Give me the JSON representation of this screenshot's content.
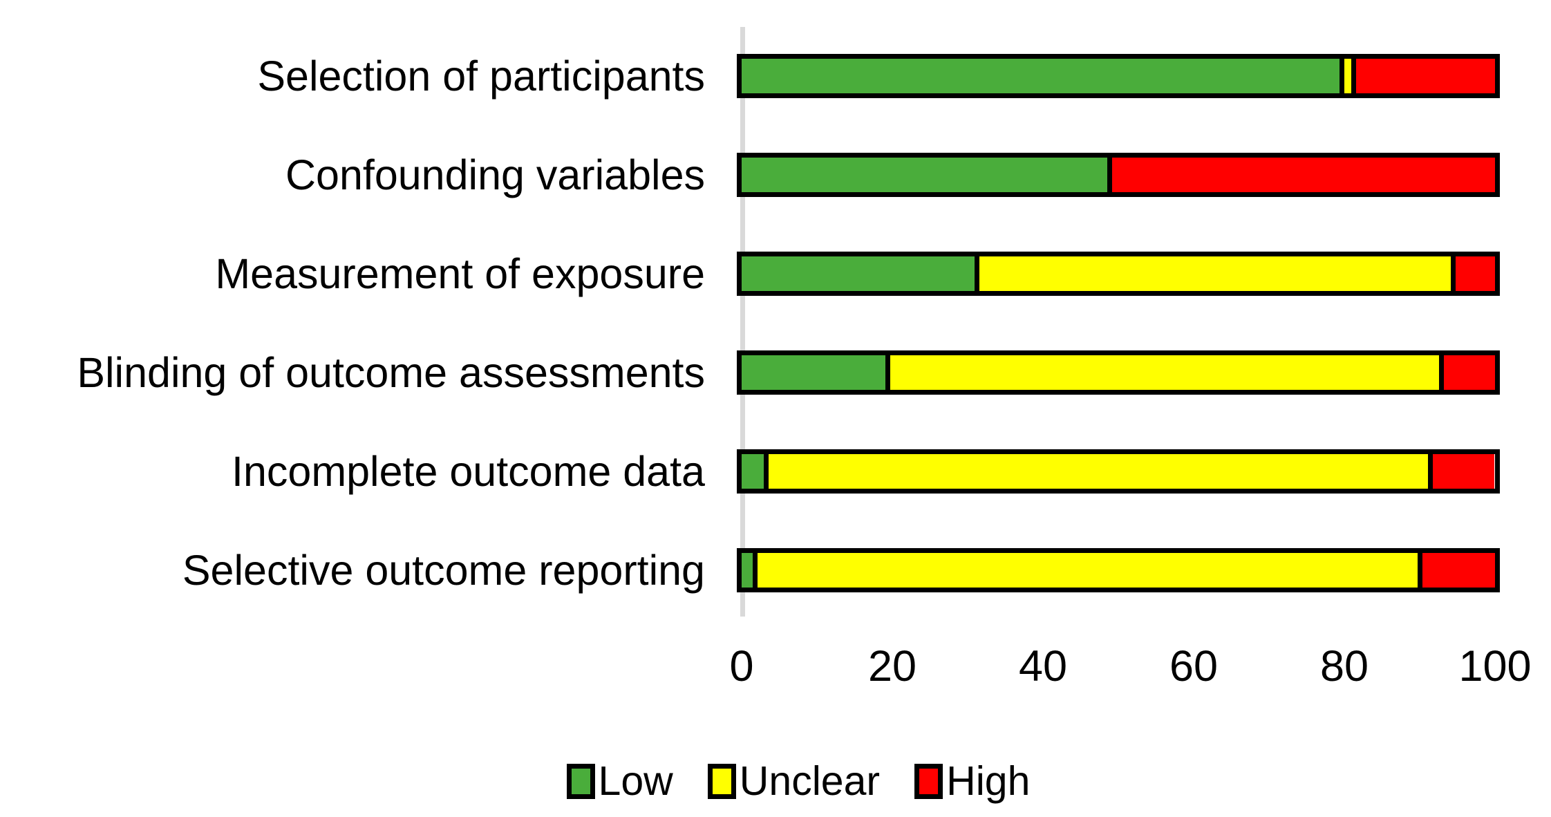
{
  "chart_data": {
    "type": "bar",
    "orientation": "horizontal",
    "stacked": true,
    "title": "",
    "xlabel": "",
    "ylabel": "",
    "grid": false,
    "categories": [
      "Selection of participants",
      "Confounding variables",
      "Measurement of exposure",
      "Blinding of outcome assessments",
      "Incomplete outcome data",
      "Selective outcome reporting"
    ],
    "series": [
      {
        "name": "Low",
        "color": "#4AAD3B",
        "values": [
          79.4,
          48.5,
          30.9,
          19.1,
          2.9,
          1.5
        ]
      },
      {
        "name": "Unclear",
        "color": "#FFFF00",
        "values": [
          1.5,
          0,
          63.2,
          73.5,
          88.2,
          88.2
        ]
      },
      {
        "name": "High",
        "color": "#FF0000",
        "values": [
          19.1,
          51.5,
          5.9,
          7.4,
          8.8,
          10.3
        ]
      }
    ],
    "x_axis": {
      "min": 0,
      "max": 100,
      "ticks": [
        0,
        20,
        40,
        60,
        80,
        100
      ]
    },
    "legend": {
      "position": "bottom",
      "entries": [
        "Low",
        "Unclear",
        "High"
      ]
    }
  },
  "colors": {
    "bar_border": "#000000",
    "axis_zero_line": "#D9D9D9",
    "text": "#000000",
    "background": "#FFFFFF"
  }
}
